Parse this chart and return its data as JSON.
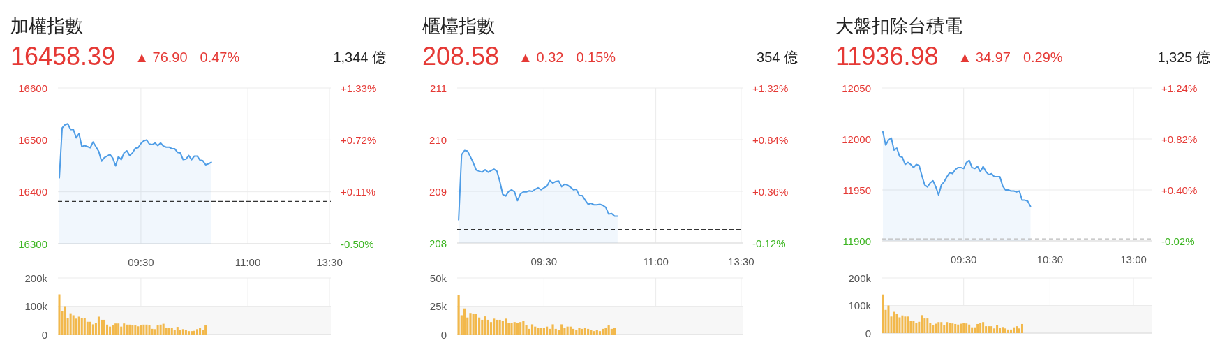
{
  "chart_data": [
    {
      "type": "area",
      "title": "加權指數",
      "annotations": [
        "16458.39",
        "▲ 76.90",
        "0.47%",
        "1,344 億"
      ],
      "categories": [
        null,
        null,
        null,
        null,
        null,
        null,
        null,
        null,
        null,
        null,
        null,
        null,
        null,
        null,
        null,
        null,
        null,
        null,
        null,
        null,
        null,
        null,
        null,
        null,
        null,
        null,
        null,
        null,
        null,
        "09:30",
        null,
        null,
        null,
        null,
        null,
        null,
        null,
        null,
        null,
        null,
        null,
        null,
        null,
        null,
        null,
        null,
        null,
        null,
        null,
        null,
        null,
        null,
        null,
        null,
        null,
        null,
        null,
        null,
        null,
        null,
        null,
        null,
        null,
        null,
        null,
        null,
        null,
        "11:00",
        null,
        null,
        null,
        null,
        null,
        null,
        null,
        null,
        null,
        null,
        null,
        null,
        null,
        null,
        null,
        null,
        null,
        null,
        null,
        null,
        null,
        null,
        null,
        null,
        null,
        null,
        null,
        null,
        "13:30"
      ],
      "series": [
        {
          "color": "#4f9de6",
          "values": [
            16427,
            16523,
            16529,
            16531,
            16520,
            16520,
            16504,
            16512,
            16487,
            16489,
            16487,
            16485,
            16496,
            16487,
            16478,
            16459,
            16466,
            16469,
            16472,
            16465,
            16450,
            16468,
            16462,
            16475,
            16479,
            16470,
            16475,
            16484,
            16485,
            16493,
            16498,
            16500,
            16492,
            16491,
            16494,
            16489,
            16494,
            16488,
            16486,
            16486,
            16483,
            16483,
            16476,
            16475,
            16462,
            16463,
            16470,
            16462,
            16469,
            16469,
            16461,
            16460,
            16452,
            16454,
            16457,
            null,
            null,
            null,
            null,
            null,
            null,
            null,
            null,
            null,
            null,
            null,
            null,
            null,
            null,
            null,
            null,
            null,
            null,
            null,
            null,
            null,
            null,
            null,
            null,
            null,
            null,
            null,
            null,
            null,
            null,
            null,
            null,
            null,
            null,
            null,
            null,
            null,
            null,
            null,
            null,
            null,
            null
          ]
        }
      ],
      "ylim": [
        16300,
        16600
      ],
      "yticks": [
        16300,
        16400,
        16500,
        16600
      ],
      "y2lim": [
        -0.5,
        1.33
      ],
      "y2ticks": [
        {
          "value": -0.5,
          "label": "-0.50%"
        },
        {
          "value": 0.11,
          "label": "+0.11%"
        },
        {
          "value": 0.72,
          "label": "+0.72%"
        },
        {
          "value": 1.33,
          "label": "+1.33%"
        }
      ],
      "ref_lines": [
        {
          "axis": "y",
          "value": 16381.49,
          "color": "#333333",
          "line_style": "dashed"
        }
      ],
      "grid": true
    },
    {
      "type": "bar",
      "categories": [
        null,
        null,
        null,
        null,
        null,
        null,
        null,
        null,
        null,
        null,
        null,
        null,
        null,
        null,
        null,
        null,
        null,
        null,
        null,
        null,
        null,
        null,
        null,
        null,
        null,
        null,
        null,
        null,
        null,
        null,
        null,
        null,
        null,
        null,
        null,
        null,
        null,
        null,
        null,
        null,
        null,
        null,
        null,
        null,
        null,
        null,
        null,
        null,
        null,
        null,
        null,
        null,
        null,
        null,
        null,
        null,
        null,
        null,
        null,
        null,
        null,
        null,
        null,
        null,
        null,
        null,
        null,
        null,
        null,
        null,
        null,
        null,
        null,
        null,
        null,
        null,
        null,
        null,
        null,
        null,
        null,
        null,
        null,
        null,
        null,
        null,
        null,
        null,
        null,
        null,
        null,
        null,
        null,
        null,
        null,
        null,
        null
      ],
      "series": [
        {
          "color": "#f2b84b",
          "values": [
            142,
            83,
            100,
            59,
            75,
            68,
            56,
            63,
            59,
            59,
            45,
            45,
            36,
            40,
            63,
            52,
            52,
            35,
            28,
            32,
            39,
            39,
            28,
            39,
            35,
            35,
            32,
            32,
            29,
            32,
            35,
            35,
            32,
            20,
            19,
            32,
            35,
            38,
            24,
            24,
            24,
            16,
            27,
            16,
            19,
            16,
            12,
            12,
            13,
            19,
            23,
            15,
            32,
            null,
            null,
            null,
            null,
            null,
            null,
            null,
            null,
            null,
            null,
            null,
            null,
            null,
            null,
            null,
            null,
            null,
            null,
            null,
            null,
            null,
            null,
            null,
            null,
            null,
            null,
            null,
            null,
            null,
            null,
            null,
            null,
            null,
            null,
            null,
            null,
            null,
            null,
            null,
            null,
            null,
            null,
            null,
            null
          ]
        }
      ],
      "ylim": [
        0,
        200
      ],
      "yticks": [
        0,
        {
          "value": 100,
          "label": "100k"
        },
        {
          "value": 200,
          "label": "200k"
        }
      ],
      "bands": [
        {
          "axis": "y",
          "from": 0,
          "to": 100,
          "color": "#f7f7f7"
        }
      ],
      "grid": "y",
      "tick_labels": "y"
    },
    {
      "type": "area",
      "title": "櫃檯指數",
      "annotations": [
        "208.58",
        "▲ 0.32",
        "0.15%",
        "354 億"
      ],
      "categories": [
        null,
        null,
        null,
        null,
        null,
        null,
        null,
        null,
        null,
        null,
        null,
        null,
        null,
        null,
        null,
        null,
        null,
        null,
        null,
        null,
        null,
        null,
        null,
        null,
        null,
        null,
        null,
        null,
        null,
        "09:30",
        null,
        null,
        null,
        null,
        null,
        null,
        null,
        null,
        null,
        null,
        null,
        null,
        null,
        null,
        null,
        null,
        null,
        null,
        null,
        null,
        null,
        null,
        null,
        null,
        null,
        null,
        null,
        null,
        null,
        null,
        null,
        null,
        null,
        null,
        null,
        null,
        null,
        "11:00",
        null,
        null,
        null,
        null,
        null,
        null,
        null,
        null,
        null,
        null,
        null,
        null,
        null,
        null,
        null,
        null,
        null,
        null,
        null,
        null,
        null,
        null,
        null,
        null,
        null,
        null,
        null,
        null,
        "13:30"
      ],
      "series": [
        {
          "color": "#4f9de6",
          "values": [
            208.45,
            209.71,
            209.79,
            209.78,
            209.67,
            209.55,
            209.41,
            209.39,
            209.37,
            209.42,
            209.37,
            209.4,
            209.43,
            209.39,
            209.19,
            208.94,
            208.91,
            209.0,
            209.03,
            208.99,
            208.82,
            208.95,
            208.99,
            208.99,
            209.01,
            209.0,
            209.04,
            209.07,
            209.03,
            209.07,
            209.1,
            209.21,
            209.16,
            209.19,
            209.2,
            209.09,
            209.14,
            209.12,
            209.08,
            209.03,
            209.04,
            208.92,
            208.92,
            208.83,
            208.75,
            208.77,
            208.74,
            208.74,
            208.75,
            208.73,
            208.69,
            208.56,
            208.57,
            208.52,
            208.52,
            null,
            null,
            null,
            null,
            null,
            null,
            null,
            null,
            null,
            null,
            null,
            null,
            null,
            null,
            null,
            null,
            null,
            null,
            null,
            null,
            null,
            null,
            null,
            null,
            null,
            null,
            null,
            null,
            null,
            null,
            null,
            null,
            null,
            null,
            null,
            null,
            null,
            null,
            null,
            null,
            null,
            null
          ]
        }
      ],
      "ylim": [
        208,
        211
      ],
      "yticks": [
        208,
        209,
        210,
        211
      ],
      "y2lim": [
        -0.12,
        1.32
      ],
      "y2ticks": [
        {
          "value": -0.12,
          "label": "-0.12%"
        },
        {
          "value": 0.36,
          "label": "+0.36%"
        },
        {
          "value": 0.84,
          "label": "+0.84%"
        },
        {
          "value": 1.32,
          "label": "+1.32%"
        }
      ],
      "ref_lines": [
        {
          "axis": "y",
          "value": 208.26,
          "color": "#333333",
          "line_style": "dashed"
        }
      ],
      "grid": true
    },
    {
      "type": "bar",
      "categories": [
        null,
        null,
        null,
        null,
        null,
        null,
        null,
        null,
        null,
        null,
        null,
        null,
        null,
        null,
        null,
        null,
        null,
        null,
        null,
        null,
        null,
        null,
        null,
        null,
        null,
        null,
        null,
        null,
        null,
        null,
        null,
        null,
        null,
        null,
        null,
        null,
        null,
        null,
        null,
        null,
        null,
        null,
        null,
        null,
        null,
        null,
        null,
        null,
        null,
        null,
        null,
        null,
        null,
        null,
        null,
        null,
        null,
        null,
        null,
        null,
        null,
        null,
        null,
        null,
        null,
        null,
        null,
        null,
        null,
        null,
        null,
        null,
        null,
        null,
        null,
        null,
        null,
        null,
        null,
        null,
        null,
        null,
        null,
        null,
        null,
        null,
        null,
        null,
        null,
        null,
        null,
        null,
        null,
        null,
        null,
        null,
        null
      ],
      "series": [
        {
          "color": "#f2b84b",
          "values": [
            35,
            17,
            23,
            15,
            19,
            18,
            18,
            15,
            13,
            16,
            13,
            11,
            14,
            13,
            13,
            12,
            14,
            10,
            10,
            11,
            10,
            11,
            12,
            8,
            5,
            9,
            7,
            6,
            6,
            6,
            7,
            5,
            9,
            5,
            4,
            9,
            6,
            7,
            7,
            5,
            4,
            6,
            5,
            6,
            5,
            4,
            3,
            4,
            3,
            5,
            6,
            8,
            5,
            6,
            null,
            null,
            null,
            null,
            null,
            null,
            null,
            null,
            null,
            null,
            null,
            null,
            null,
            null,
            null,
            null,
            null,
            null,
            null,
            null,
            null,
            null,
            null,
            null,
            null,
            null,
            null,
            null,
            null,
            null,
            null,
            null,
            null,
            null,
            null,
            null,
            null,
            null,
            null,
            null,
            null,
            null,
            null
          ]
        }
      ],
      "ylim": [
        0,
        50
      ],
      "yticks": [
        0,
        {
          "value": 25,
          "label": "25k"
        },
        {
          "value": 50,
          "label": "50k"
        }
      ],
      "bands": [
        {
          "axis": "y",
          "from": 0,
          "to": 25,
          "color": "#f7f7f7"
        }
      ],
      "grid": "y",
      "tick_labels": "y"
    },
    {
      "type": "area",
      "title": "大盤扣除台積電",
      "annotations": [
        "11936.98",
        "▲ 34.97",
        "0.29%",
        "1,325 億"
      ],
      "categories": [
        null,
        null,
        null,
        null,
        null,
        null,
        null,
        null,
        null,
        null,
        null,
        null,
        null,
        null,
        null,
        null,
        null,
        null,
        null,
        null,
        null,
        null,
        null,
        null,
        null,
        null,
        null,
        null,
        null,
        "09:30",
        null,
        null,
        null,
        null,
        null,
        null,
        null,
        null,
        null,
        null,
        null,
        null,
        null,
        null,
        null,
        null,
        null,
        null,
        null,
        null,
        null,
        null,
        null,
        null,
        null,
        null,
        null,
        null,
        null,
        null,
        "10:30",
        null,
        null,
        null,
        null,
        null,
        null,
        null,
        null,
        null,
        null,
        null,
        null,
        null,
        null,
        null,
        null,
        null,
        null,
        null,
        null,
        null,
        null,
        null,
        null,
        null,
        null,
        null,
        null,
        null,
        "13:00",
        null,
        null,
        null,
        null,
        null,
        null
      ],
      "series": [
        {
          "color": "#4f9de6",
          "values": [
            12007,
            11994,
            11999,
            12001,
            11989,
            11991,
            11983,
            11982,
            11975,
            11977,
            11975,
            11972,
            11975,
            11974,
            11964,
            11955,
            11953,
            11957,
            11959,
            11953,
            11945,
            11955,
            11958,
            11963,
            11967,
            11966,
            11970,
            11972,
            11972,
            11971,
            11977,
            11979,
            11972,
            11971,
            11973,
            11968,
            11973,
            11968,
            11965,
            11966,
            11963,
            11963,
            11963,
            11954,
            11950,
            11950,
            11949,
            11949,
            11948,
            11949,
            11940,
            11940,
            11939,
            11934,
            null,
            null,
            null,
            null,
            null,
            null,
            null,
            null,
            null,
            null,
            null,
            null,
            null,
            null,
            null,
            null,
            null,
            null,
            null,
            null,
            null,
            null,
            null,
            null,
            null,
            null,
            null,
            null,
            null,
            null,
            null,
            null,
            null,
            null,
            null,
            null,
            null,
            null,
            null,
            null,
            null,
            null,
            null
          ]
        }
      ],
      "ylim": [
        11900,
        12050
      ],
      "yticks": [
        11900,
        11950,
        12000,
        12050
      ],
      "y2lim": [
        -0.02,
        1.24
      ],
      "y2ticks": [
        {
          "value": -0.02,
          "label": "-0.02%"
        },
        {
          "value": 0.4,
          "label": "+0.40%"
        },
        {
          "value": 0.82,
          "label": "+0.82%"
        },
        {
          "value": 1.24,
          "label": "+1.24%"
        }
      ],
      "ref_lines": [
        {
          "axis": "y",
          "value": 11902.01,
          "color": "#bbbbbb",
          "line_style": "dashed"
        }
      ],
      "grid": true
    },
    {
      "type": "bar",
      "categories": [
        null,
        null,
        null,
        null,
        null,
        null,
        null,
        null,
        null,
        null,
        null,
        null,
        null,
        null,
        null,
        null,
        null,
        null,
        null,
        null,
        null,
        null,
        null,
        null,
        null,
        null,
        null,
        null,
        null,
        null,
        null,
        null,
        null,
        null,
        null,
        null,
        null,
        null,
        null,
        null,
        null,
        null,
        null,
        null,
        null,
        null,
        null,
        null,
        null,
        null,
        null,
        null,
        null,
        null,
        null,
        null,
        null,
        null,
        null,
        null,
        null,
        null,
        null,
        null,
        null,
        null,
        null,
        null,
        null,
        null,
        null,
        null,
        null,
        null,
        null,
        null,
        null,
        null,
        null,
        null,
        null,
        null,
        null,
        null,
        null,
        null,
        null,
        null,
        null,
        null,
        null,
        null,
        null,
        null,
        null,
        null,
        null
      ],
      "series": [
        {
          "color": "#f2b84b",
          "values": [
            140,
            84,
            100,
            60,
            77,
            69,
            57,
            64,
            60,
            60,
            45,
            45,
            37,
            41,
            65,
            53,
            53,
            36,
            29,
            34,
            40,
            40,
            30,
            40,
            37,
            35,
            33,
            31,
            34,
            36,
            35,
            31,
            21,
            21,
            33,
            38,
            40,
            25,
            25,
            25,
            17,
            28,
            18,
            22,
            17,
            13,
            13,
            21,
            25,
            17,
            33,
            null,
            null,
            null,
            null,
            null,
            null,
            null,
            null,
            null,
            null,
            null,
            null,
            null,
            null,
            null,
            null,
            null,
            null,
            null,
            null,
            null,
            null,
            null,
            null,
            null,
            null,
            null,
            null,
            null,
            null,
            null,
            null,
            null,
            null,
            null,
            null,
            null,
            null,
            null,
            null,
            null,
            null,
            null,
            null,
            null,
            null
          ]
        }
      ],
      "ylim": [
        0,
        200
      ],
      "yticks": [
        0,
        {
          "value": 100,
          "label": "100k"
        },
        {
          "value": 200,
          "label": "200k"
        }
      ],
      "bands": [
        {
          "axis": "y",
          "from": 0,
          "to": 100,
          "color": "#f7f7f7"
        }
      ],
      "grid": "y",
      "tick_labels": "y"
    }
  ]
}
